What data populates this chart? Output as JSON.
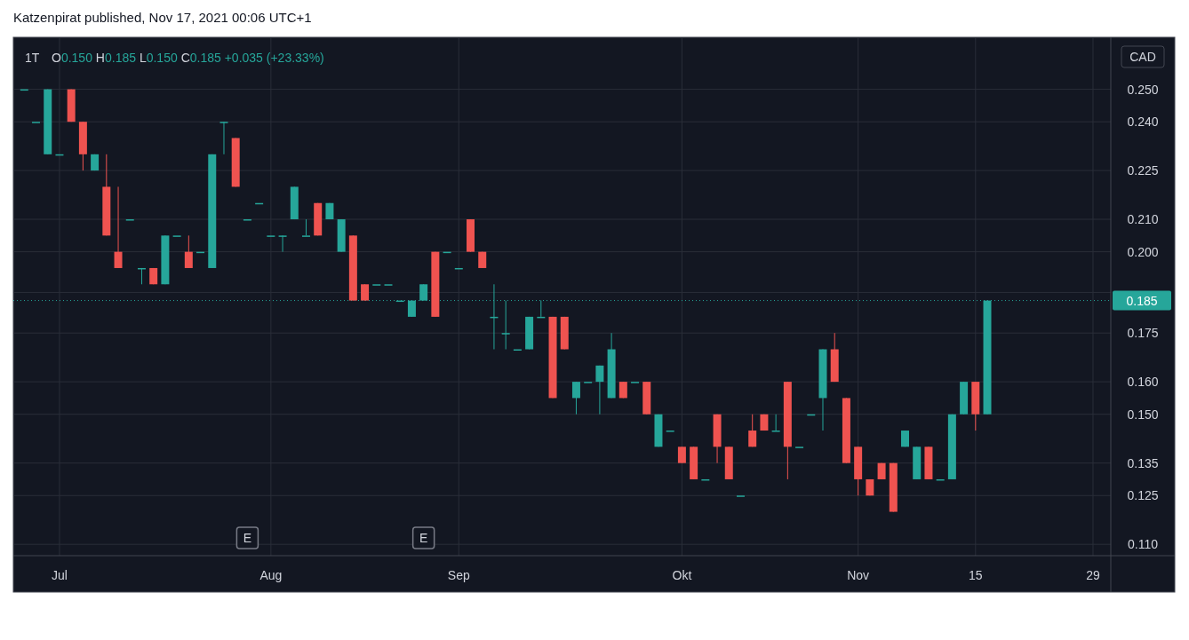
{
  "chart_data": {
    "type": "candlestick",
    "title": "1T",
    "subtitle": "O0.150 H0.185 L0.150 C0.185 +0.035 (+23.33%)",
    "ylabel": "CAD",
    "annotations": [
      "Katzenpirat published, Nov 17, 2021 00:06 UTC+1",
      "E",
      "E"
    ],
    "categories": [
      null,
      null,
      null,
      "Jul",
      null,
      null,
      null,
      null,
      null,
      null,
      null,
      null,
      null,
      null,
      null,
      null,
      null,
      null,
      null,
      null,
      null,
      "Aug",
      null,
      null,
      null,
      null,
      null,
      null,
      null,
      null,
      null,
      null,
      null,
      null,
      null,
      null,
      null,
      "Sep",
      null,
      null,
      null,
      null,
      null,
      null,
      null,
      null,
      null,
      null,
      null,
      null,
      null,
      null,
      null,
      null,
      null,
      null,
      "Okt",
      null,
      null,
      null,
      null,
      null,
      null,
      null,
      null,
      null,
      null,
      null,
      null,
      null,
      null,
      "Nov",
      null,
      null,
      null,
      null,
      null,
      null,
      null,
      null,
      null,
      "15",
      null,
      null,
      null,
      null,
      null,
      null,
      null,
      null,
      null,
      "29",
      null
    ],
    "ohlc": [
      [
        0.25,
        0.25,
        0.25,
        0.25
      ],
      [
        0.24,
        0.24,
        0.24,
        0.24
      ],
      [
        0.23,
        0.25,
        0.23,
        0.25
      ],
      [
        0.23,
        0.23,
        0.23,
        0.23
      ],
      [
        0.25,
        0.25,
        0.24,
        0.24
      ],
      [
        0.24,
        0.24,
        0.225,
        0.23
      ],
      [
        0.225,
        0.23,
        0.225,
        0.23
      ],
      [
        0.22,
        0.23,
        0.205,
        0.205
      ],
      [
        0.2,
        0.22,
        0.195,
        0.195
      ],
      [
        0.21,
        0.21,
        0.21,
        0.21
      ],
      [
        0.195,
        0.195,
        0.19,
        0.195
      ],
      [
        0.195,
        0.195,
        0.19,
        0.19
      ],
      [
        0.19,
        0.205,
        0.19,
        0.205
      ],
      [
        0.205,
        0.205,
        0.205,
        0.205
      ],
      [
        0.2,
        0.205,
        0.195,
        0.195
      ],
      [
        0.2,
        0.2,
        0.2,
        0.2
      ],
      [
        0.195,
        0.23,
        0.195,
        0.23
      ],
      [
        0.24,
        0.24,
        0.23,
        0.24
      ],
      [
        0.235,
        0.235,
        0.22,
        0.22
      ],
      [
        0.21,
        0.21,
        0.21,
        0.21
      ],
      [
        0.215,
        0.215,
        0.215,
        0.215
      ],
      [
        0.205,
        0.205,
        0.205,
        0.205
      ],
      [
        0.205,
        0.205,
        0.2,
        0.205
      ],
      [
        0.21,
        0.22,
        0.21,
        0.22
      ],
      [
        0.205,
        0.21,
        0.205,
        0.205
      ],
      [
        0.215,
        0.215,
        0.205,
        0.205
      ],
      [
        0.21,
        0.215,
        0.21,
        0.215
      ],
      [
        0.2,
        0.21,
        0.2,
        0.21
      ],
      [
        0.205,
        0.205,
        0.185,
        0.185
      ],
      [
        0.19,
        0.19,
        0.185,
        0.185
      ],
      [
        0.19,
        0.19,
        0.19,
        0.19
      ],
      [
        0.19,
        0.19,
        0.19,
        0.19
      ],
      [
        0.185,
        0.185,
        0.185,
        0.185
      ],
      [
        0.18,
        0.185,
        0.18,
        0.185
      ],
      [
        0.185,
        0.19,
        0.185,
        0.19
      ],
      [
        0.2,
        0.2,
        0.18,
        0.18
      ],
      [
        0.2,
        0.2,
        0.2,
        0.2
      ],
      [
        0.195,
        0.195,
        0.195,
        0.195
      ],
      [
        0.21,
        0.21,
        0.2,
        0.2
      ],
      [
        0.2,
        0.2,
        0.195,
        0.195
      ],
      [
        0.18,
        0.19,
        0.17,
        0.18
      ],
      [
        0.175,
        0.185,
        0.17,
        0.175
      ],
      [
        0.17,
        0.17,
        0.17,
        0.17
      ],
      [
        0.17,
        0.18,
        0.17,
        0.18
      ],
      [
        0.18,
        0.185,
        0.18,
        0.18
      ],
      [
        0.18,
        0.18,
        0.155,
        0.155
      ],
      [
        0.18,
        0.18,
        0.17,
        0.17
      ],
      [
        0.155,
        0.16,
        0.15,
        0.16
      ],
      [
        0.16,
        0.16,
        0.16,
        0.16
      ],
      [
        0.16,
        0.165,
        0.15,
        0.165
      ],
      [
        0.155,
        0.175,
        0.155,
        0.17
      ],
      [
        0.16,
        0.16,
        0.155,
        0.155
      ],
      [
        0.16,
        0.16,
        0.16,
        0.16
      ],
      [
        0.16,
        0.16,
        0.15,
        0.15
      ],
      [
        0.14,
        0.15,
        0.14,
        0.15
      ],
      [
        0.145,
        0.145,
        0.145,
        0.145
      ],
      [
        0.14,
        0.14,
        0.135,
        0.135
      ],
      [
        0.14,
        0.14,
        0.13,
        0.13
      ],
      [
        0.13,
        0.13,
        0.13,
        0.13
      ],
      [
        0.15,
        0.15,
        0.135,
        0.14
      ],
      [
        0.14,
        0.14,
        0.13,
        0.13
      ],
      [
        0.125,
        0.125,
        0.125,
        0.125
      ],
      [
        0.145,
        0.15,
        0.14,
        0.14
      ],
      [
        0.15,
        0.15,
        0.145,
        0.145
      ],
      [
        0.145,
        0.15,
        0.145,
        0.145
      ],
      [
        0.16,
        0.16,
        0.13,
        0.14
      ],
      [
        0.14,
        0.14,
        0.14,
        0.14
      ],
      [
        0.15,
        0.15,
        0.15,
        0.15
      ],
      [
        0.155,
        0.17,
        0.145,
        0.17
      ],
      [
        0.17,
        0.175,
        0.16,
        0.16
      ],
      [
        0.155,
        0.155,
        0.135,
        0.135
      ],
      [
        0.14,
        0.14,
        0.125,
        0.13
      ],
      [
        0.13,
        0.13,
        0.125,
        0.125
      ],
      [
        0.135,
        0.135,
        0.13,
        0.13
      ],
      [
        0.135,
        0.135,
        0.12,
        0.12
      ],
      [
        0.14,
        0.145,
        0.14,
        0.145
      ],
      [
        0.13,
        0.14,
        0.13,
        0.14
      ],
      [
        0.14,
        0.14,
        0.13,
        0.13
      ],
      [
        0.13,
        0.13,
        0.13,
        0.13
      ],
      [
        0.13,
        0.15,
        0.13,
        0.15
      ],
      [
        0.15,
        0.16,
        0.15,
        0.16
      ],
      [
        0.16,
        0.16,
        0.145,
        0.15
      ],
      [
        0.15,
        0.185,
        0.15,
        0.185
      ],
      null,
      null,
      null,
      null,
      null,
      null,
      null,
      null,
      null,
      null
    ],
    "colors": [
      "#26a69a",
      "#26a69a",
      "#26a69a",
      "#26a69a",
      "#ef5350",
      "#ef5350",
      "#26a69a",
      "#ef5350",
      "#ef5350",
      "#26a69a",
      "#26a69a",
      "#ef5350",
      "#26a69a",
      "#26a69a",
      "#ef5350",
      "#26a69a",
      "#26a69a",
      "#26a69a",
      "#ef5350",
      "#26a69a",
      "#26a69a",
      "#26a69a",
      "#26a69a",
      "#26a69a",
      "#26a69a",
      "#ef5350",
      "#26a69a",
      "#26a69a",
      "#ef5350",
      "#ef5350",
      "#26a69a",
      "#26a69a",
      "#26a69a",
      "#26a69a",
      "#26a69a",
      "#ef5350",
      "#26a69a",
      "#26a69a",
      "#ef5350",
      "#ef5350",
      "#26a69a",
      "#26a69a",
      "#26a69a",
      "#26a69a",
      "#26a69a",
      "#ef5350",
      "#ef5350",
      "#26a69a",
      "#26a69a",
      "#26a69a",
      "#26a69a",
      "#ef5350",
      "#26a69a",
      "#ef5350",
      "#26a69a",
      "#26a69a",
      "#ef5350",
      "#ef5350",
      "#26a69a",
      "#ef5350",
      "#ef5350",
      "#26a69a",
      "#ef5350",
      "#ef5350",
      "#26a69a",
      "#ef5350",
      "#26a69a",
      "#26a69a",
      "#26a69a",
      "#ef5350",
      "#ef5350",
      "#ef5350",
      "#ef5350",
      "#ef5350",
      "#ef5350",
      "#26a69a",
      "#26a69a",
      "#ef5350",
      "#26a69a",
      "#26a69a",
      "#26a69a",
      "#ef5350",
      "#26a69a",
      null,
      null,
      null,
      null,
      null,
      null,
      null,
      null,
      null,
      null
    ],
    "ylim": [
      0.1065,
      0.266
    ],
    "yticks": [
      {
        "value": 0.11,
        "label": "0.110"
      },
      {
        "value": 0.125,
        "label": "0.125"
      },
      {
        "value": 0.135,
        "label": "0.135"
      },
      {
        "value": 0.15,
        "label": "0.150"
      },
      {
        "value": 0.16,
        "label": "0.160"
      },
      {
        "value": 0.175,
        "label": "0.175"
      },
      {
        "value": 0.1875,
        "label": null
      },
      {
        "value": 0.2,
        "label": "0.200"
      },
      {
        "value": 0.21,
        "label": "0.210"
      },
      {
        "value": 0.225,
        "label": "0.225"
      },
      {
        "value": 0.24,
        "label": "0.240"
      },
      {
        "value": 0.25,
        "label": "0.250"
      }
    ],
    "ref_lines": [
      {
        "axis": "y",
        "value": 0.185,
        "label": "0.185",
        "color": "#26a69a",
        "line_style": "dotted"
      }
    ],
    "grid": true
  }
}
